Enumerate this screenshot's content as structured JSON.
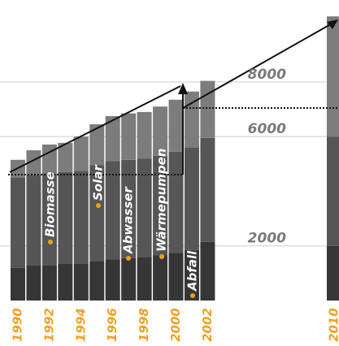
{
  "chart_data": {
    "type": "bar",
    "stacked": true,
    "categories": [
      "1990",
      null,
      "1992",
      null,
      "1994",
      null,
      "1996",
      null,
      "1998",
      null,
      "2000",
      null,
      "2002",
      null,
      null,
      null,
      null,
      null,
      null,
      null,
      "2010"
    ],
    "series": [
      {
        "color": "#363636",
        "values": [
          1200,
          1300,
          1300,
          1350,
          1350,
          1450,
          1500,
          1550,
          1600,
          1650,
          1750,
          1850,
          2150,
          null,
          null,
          null,
          null,
          null,
          null,
          null,
          2000
        ]
      },
      {
        "color": "#565656",
        "values": [
          3300,
          3300,
          3350,
          3350,
          3400,
          3500,
          3600,
          3600,
          3600,
          3650,
          3700,
          3750,
          3800,
          null,
          null,
          null,
          null,
          null,
          null,
          null,
          4000
        ]
      },
      {
        "color": "#7c7c7c",
        "values": [
          650,
          900,
          1060,
          1070,
          1250,
          1500,
          1650,
          1700,
          1700,
          1800,
          1900,
          2050,
          2090,
          null,
          null,
          null,
          null,
          null,
          null,
          null,
          4400
        ]
      }
    ],
    "ylim": [
      0,
      11000
    ],
    "yticks": [
      2000,
      6000,
      8000
    ],
    "grid": true,
    "annotations": [
      "Biomasse",
      "Solar",
      "Abwasser",
      "Wärmepumpen",
      "Abfall"
    ]
  }
}
